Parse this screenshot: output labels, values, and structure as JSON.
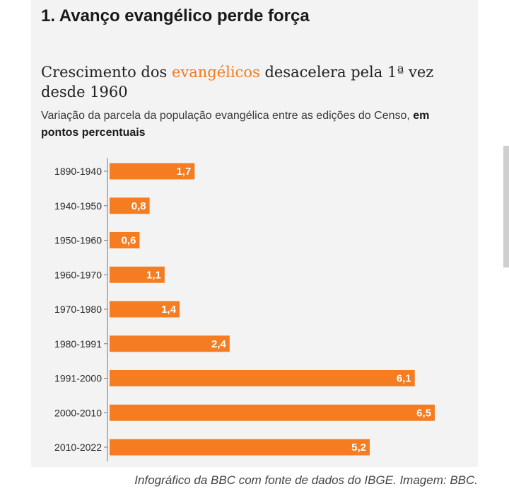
{
  "page": {
    "heading": "1. Avanço evangélico perde força",
    "caption": "Infográfico da BBC com fonte de dados do IBGE. Imagem: BBC."
  },
  "chart_data": {
    "type": "bar",
    "orientation": "horizontal",
    "title_parts": {
      "before": "Crescimento dos ",
      "highlight": "evangélicos",
      "after": " desacelera pela 1ª vez desde 1960"
    },
    "subtitle_parts": {
      "normal": "Variação da parcela da população evangélica entre as edições do Censo, ",
      "bold": "em pontos percentuais"
    },
    "categories": [
      "1890-1940",
      "1940-1950",
      "1950-1960",
      "1960-1970",
      "1970-1980",
      "1980-1991",
      "1991-2000",
      "2000-2010",
      "2010-2022"
    ],
    "values": [
      1.7,
      0.8,
      0.6,
      1.1,
      1.4,
      2.4,
      6.1,
      6.5,
      5.2
    ],
    "value_labels": [
      "1,7",
      "0,8",
      "0,6",
      "1,1",
      "1,4",
      "2,4",
      "6,1",
      "6,5",
      "5,2"
    ],
    "xlim": [
      0,
      6.5
    ],
    "grid": false,
    "legend": "none",
    "colors": {
      "bar": "#f57c20",
      "accent": "#f37a20",
      "label": "#ffffff",
      "axis": "#777777"
    }
  }
}
